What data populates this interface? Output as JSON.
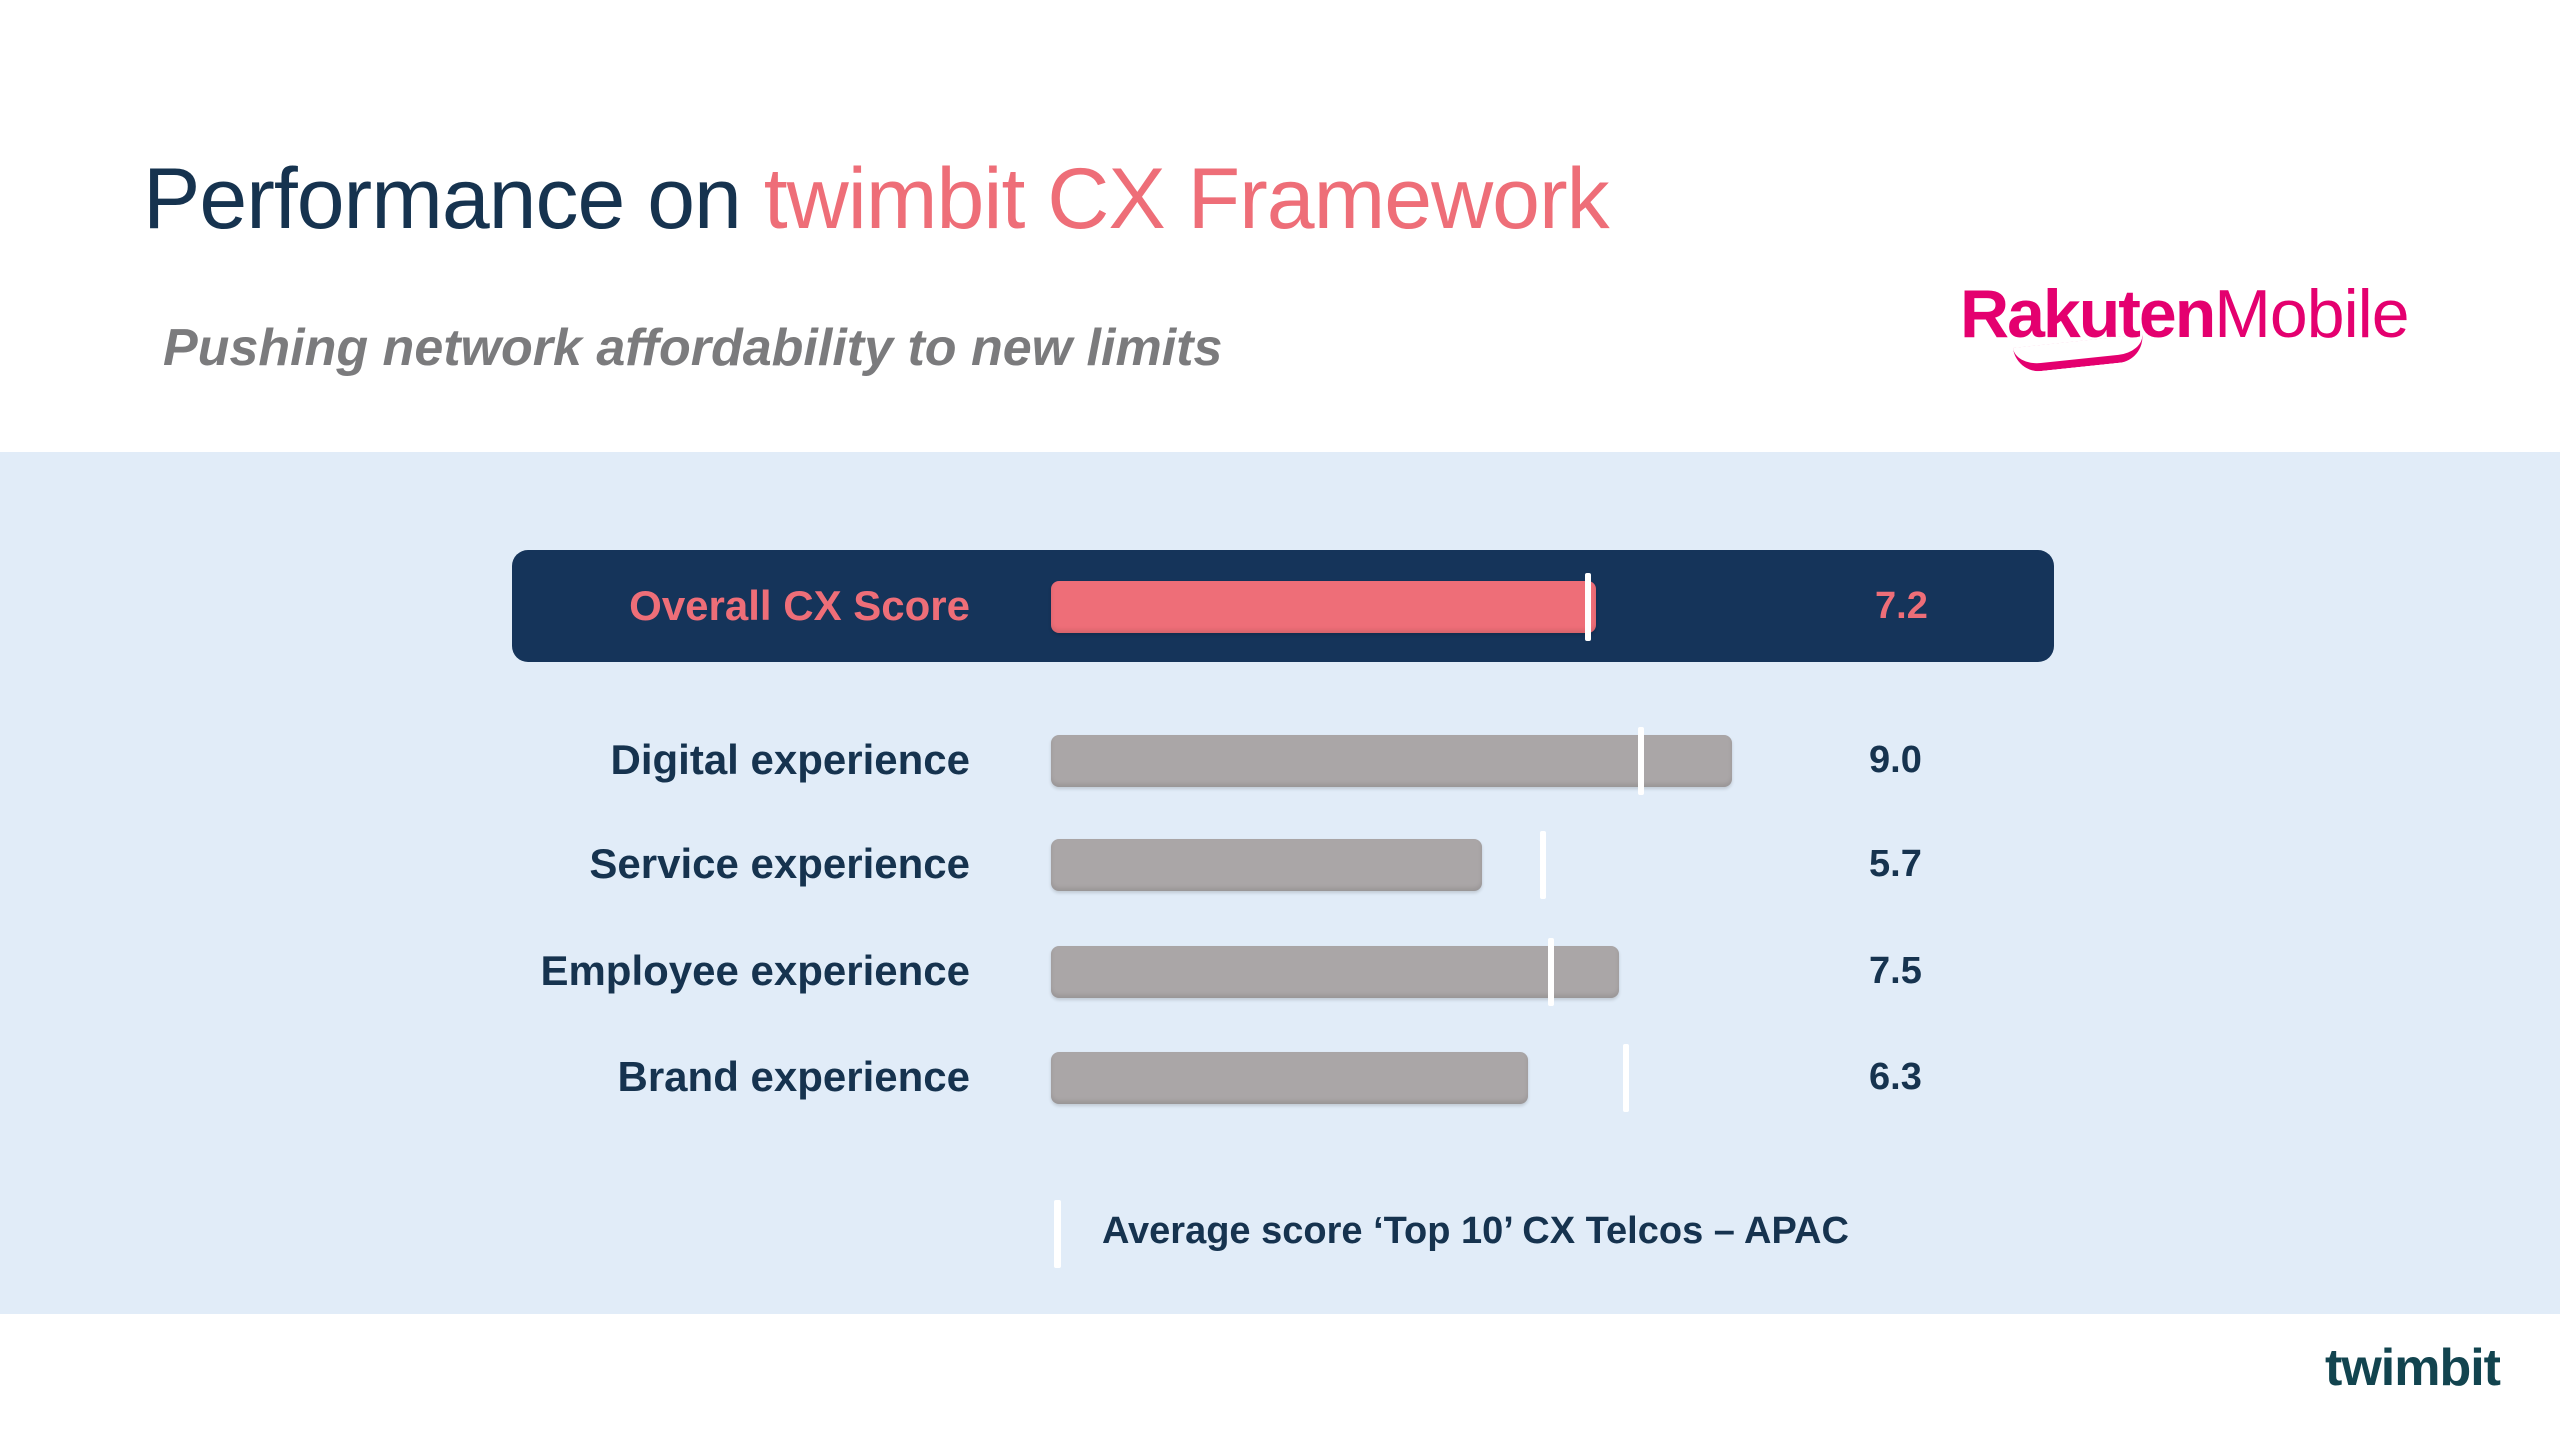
{
  "header": {
    "title_main": "Performance on ",
    "title_accent": "twimbit CX Framework",
    "subtitle": "Pushing network affordability to new limits",
    "brand_logo_bold": "Rakuten",
    "brand_logo_regular": "Mobile"
  },
  "footer": {
    "logo": "twimbit"
  },
  "colors": {
    "navy": "#16334f",
    "accent_pink": "#ee6e78",
    "bar_gray": "#aaa6a7",
    "panel_bg": "#e1ecf8",
    "highlight_bg": "#15345a"
  },
  "chart_data": {
    "type": "bar",
    "orientation": "horizontal",
    "categories": [
      "Overall CX Score",
      "Digital experience",
      "Service experience",
      "Employee experience",
      "Brand experience"
    ],
    "values": [
      7.2,
      9.0,
      5.7,
      7.5,
      6.3
    ],
    "value_labels": [
      "7.2",
      "9.0",
      "5.7",
      "7.5",
      "6.3"
    ],
    "benchmark": {
      "name": "Average score ‘Top 10’ CX Telcos – APAC",
      "values": [
        7.1,
        7.8,
        6.5,
        6.6,
        7.6
      ]
    },
    "xlim": [
      0,
      10
    ],
    "grid": false,
    "legend": "bottom-center"
  }
}
